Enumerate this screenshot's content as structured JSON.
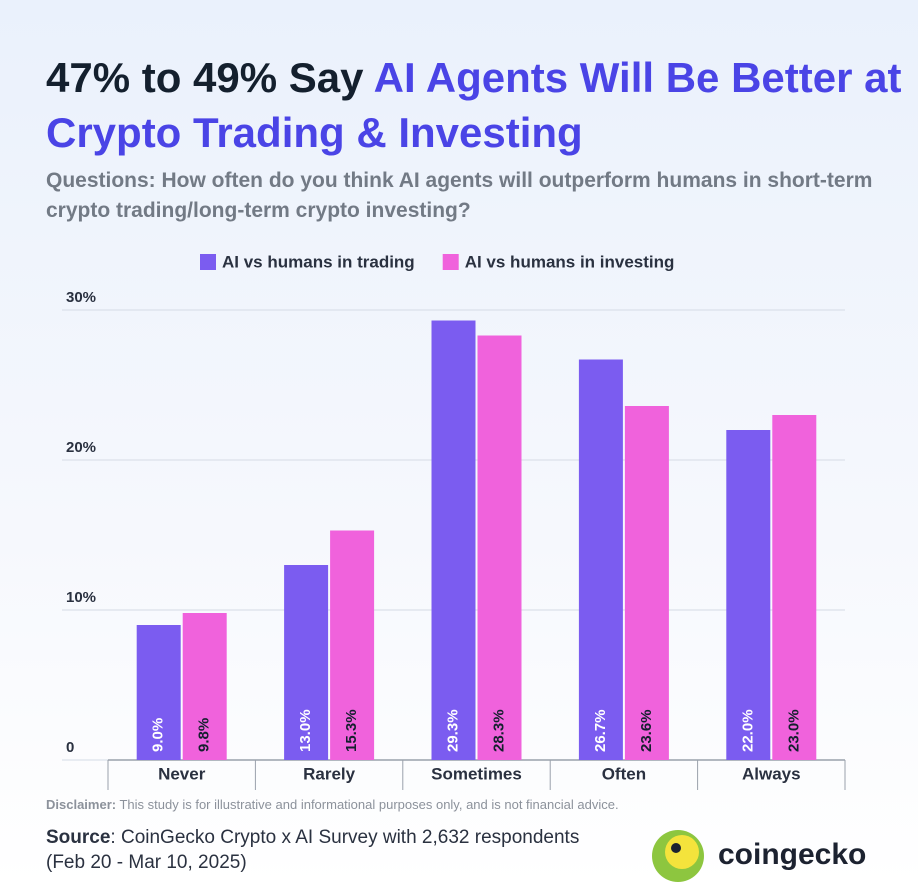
{
  "chart_data": {
    "type": "bar",
    "title": "47% to 49% Say",
    "title_highlight": "AI Agents Will Be Better at Crypto Trading & Investing",
    "subtitle": "Questions: How often do you think AI agents will outperform humans in short-term crypto trading/long-term crypto investing?",
    "categories": [
      "Never",
      "Rarely",
      "Sometimes",
      "Often",
      "Always"
    ],
    "series": [
      {
        "name": "AI vs humans in trading",
        "color": "#7b5cf0",
        "values": [
          9.0,
          13.0,
          29.3,
          26.7,
          22.0
        ],
        "value_labels": [
          "9.0%",
          "13.0%",
          "29.3%",
          "26.7%",
          "22.0%"
        ]
      },
      {
        "name": "AI vs humans in investing",
        "color": "#f062dc",
        "values": [
          9.8,
          15.3,
          28.3,
          23.6,
          23.0
        ],
        "value_labels": [
          "9.8%",
          "15.3%",
          "28.3%",
          "23.6%",
          "23.0%"
        ]
      }
    ],
    "ylim": [
      0,
      30
    ],
    "yticks": [
      0,
      {
        "value": 10,
        "label": "10%"
      },
      {
        "value": 20,
        "label": "20%"
      },
      {
        "value": 30,
        "label": "30%"
      }
    ],
    "grid": true,
    "legend": "top",
    "disclaimer_label": "Disclaimer:",
    "disclaimer": "This study is for illustrative and informational purposes only, and is not financial advice.",
    "source_label": "Source",
    "source": ": CoinGecko Crypto x AI Survey with 2,632 respondents (Feb 20 - Mar 10, 2025)",
    "brand": "coingecko"
  }
}
